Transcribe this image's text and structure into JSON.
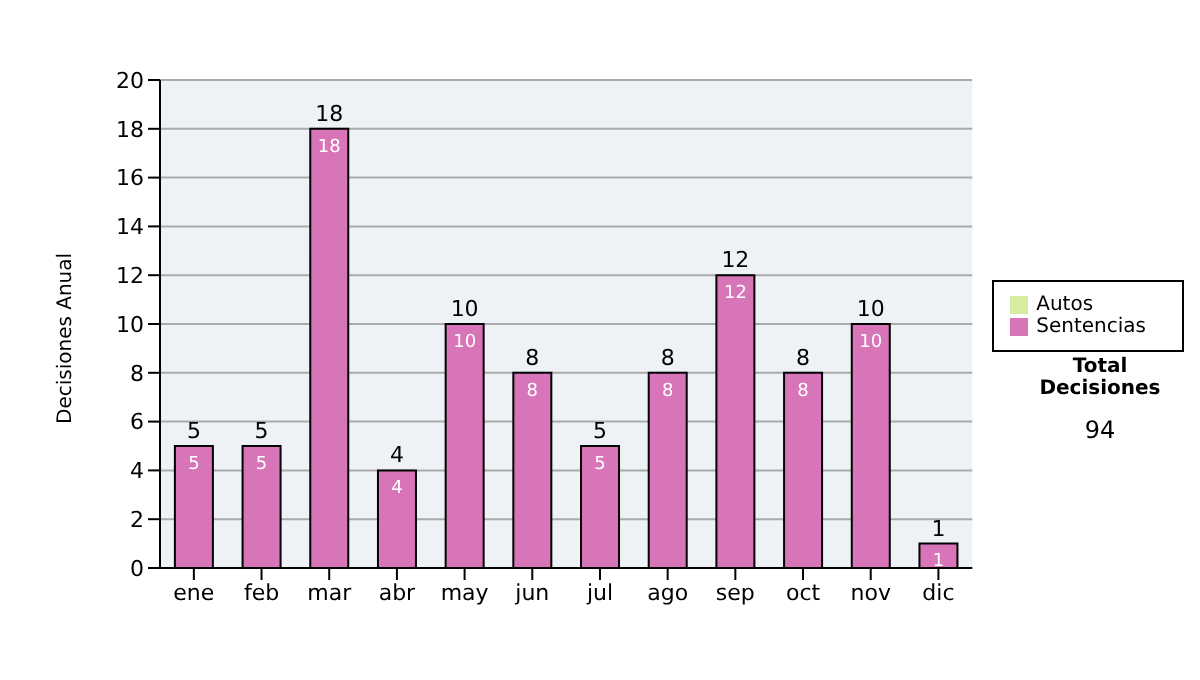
{
  "chart_data": {
    "type": "bar",
    "ylabel": "Decisiones Anual",
    "categories": [
      "ene",
      "feb",
      "mar",
      "abr",
      "may",
      "jun",
      "jul",
      "ago",
      "sep",
      "oct",
      "nov",
      "dic"
    ],
    "series": [
      {
        "name": "Sentencias",
        "color": "#d874b8",
        "values": [
          5,
          5,
          18,
          4,
          10,
          8,
          5,
          8,
          12,
          8,
          10,
          1
        ]
      },
      {
        "name": "Autos",
        "color": "#d8eca0",
        "values": [
          null,
          null,
          null,
          null,
          null,
          null,
          null,
          null,
          null,
          null,
          null,
          null
        ]
      }
    ],
    "stacked": true,
    "data_labels": true,
    "totals": [
      "5",
      "5",
      "18",
      "4",
      "10",
      "8",
      "5",
      "8",
      "12",
      "8",
      "10",
      "1"
    ],
    "ylim": [
      0,
      20
    ],
    "yticks": [
      0,
      2,
      4,
      6,
      8,
      10,
      12,
      14,
      16,
      18,
      20
    ],
    "grid": "y",
    "legend": "right",
    "annotations": [
      "Total Decisiones",
      "94"
    ]
  }
}
